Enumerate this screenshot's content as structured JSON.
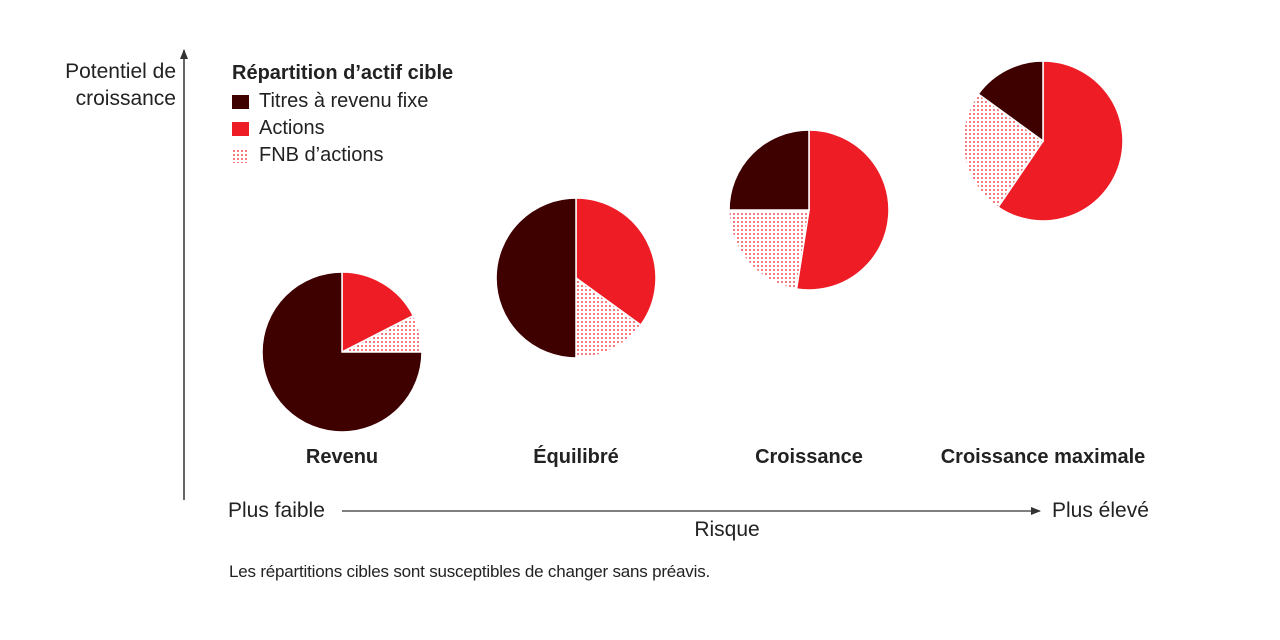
{
  "colors": {
    "fixed_income": "#3f0000",
    "equities": "#ee1c25",
    "equity_etf_dots": "#ee1c25",
    "axis": "#333333",
    "text": "#222222"
  },
  "chart_data": {
    "type": "pie",
    "yaxis_title": "Potentiel de croissance",
    "xaxis_title": "Risque",
    "x_low_label": "Plus faible",
    "x_high_label": "Plus élevé",
    "legend": {
      "title": "Répartition d’actif cible",
      "items": [
        {
          "key": "fixed_income",
          "label": "Titres à revenu fixe",
          "color": "#3f0000",
          "pattern": "solid"
        },
        {
          "key": "equities",
          "label": "Actions",
          "color": "#ee1c25",
          "pattern": "solid"
        },
        {
          "key": "equity_etf",
          "label": "FNB d’actions",
          "color": "#ee1c25",
          "pattern": "dots"
        }
      ],
      "position": "top-left"
    },
    "portfolios": [
      {
        "name": "Revenu",
        "slices": {
          "equities": 17.5,
          "equity_etf": 7.5,
          "fixed_income": 75
        }
      },
      {
        "name": "Équilibré",
        "slices": {
          "equities": 35,
          "equity_etf": 15,
          "fixed_income": 50
        }
      },
      {
        "name": "Croissance",
        "slices": {
          "equities": 52.5,
          "equity_etf": 22.5,
          "fixed_income": 25
        }
      },
      {
        "name": "Croissance maximale",
        "slices": {
          "equities": 59.5,
          "equity_etf": 25.5,
          "fixed_income": 15
        }
      }
    ]
  },
  "footnote": "Les répartitions cibles sont susceptibles de changer sans préavis."
}
